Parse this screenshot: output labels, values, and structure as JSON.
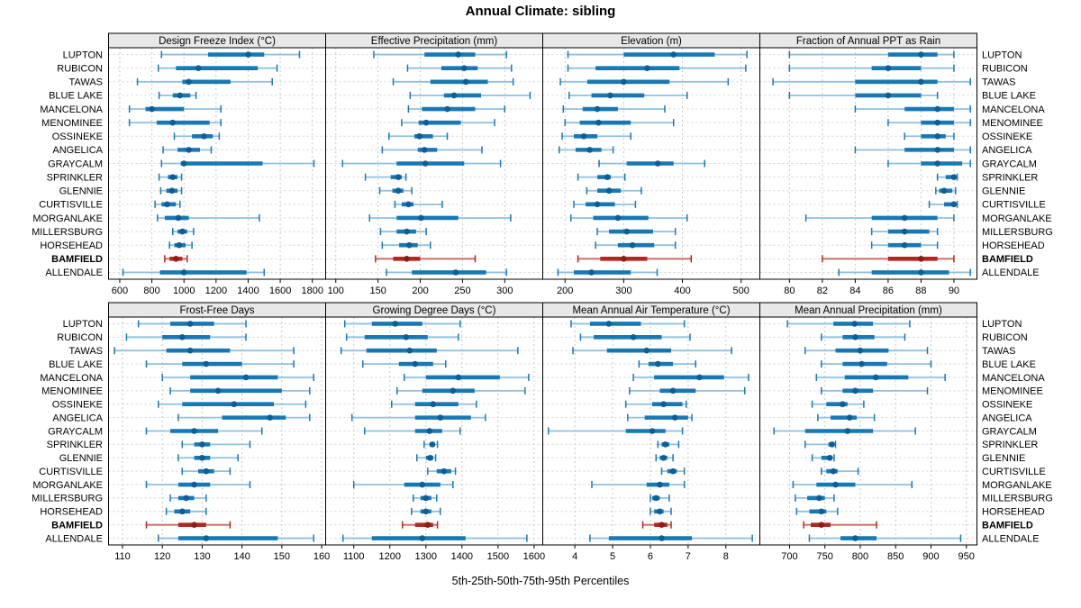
{
  "title": "Annual Climate: sibling",
  "caption": "5th-25th-50th-75th-95th Percentiles",
  "sites": [
    "LUPTON",
    "RUBICON",
    "TAWAS",
    "BLUE LAKE",
    "MANCELONA",
    "MENOMINEE",
    "OSSINEKE",
    "ANGELICA",
    "GRAYCALM",
    "SPRINKLER",
    "GLENNIE",
    "CURTISVILLE",
    "MORGANLAKE",
    "MILLERSBURG",
    "HORSEHEAD",
    "BAMFIELD",
    "ALLENDALE"
  ],
  "highlight_site": "BAMFIELD",
  "colors": {
    "normal": {
      "whisker": "#8fc1e0",
      "cap": "#1878b4",
      "box": "#1878b4",
      "dot": "#0d5e97"
    },
    "highlight": {
      "whisker": "#c96a60",
      "cap": "#b2271f",
      "box": "#b2271f",
      "dot": "#8f1d17"
    },
    "grid": "#c8c8c8",
    "row_line": "#d4d4d4",
    "strip_bg": "#e8e8e8",
    "border": "#000000",
    "text": "#000000"
  },
  "chart_data": {
    "type": "dotplot-percentiles",
    "percentiles": [
      5,
      25,
      50,
      75,
      95
    ],
    "legend_note": "5th-25th-50th-75th-95th Percentiles",
    "grid": "2 rows x 4 cols, dashed gridlines at ticks, dashed horizontal line per site row",
    "panels": [
      {
        "title": "Design Freeze Index (°C)",
        "grid_row": 0,
        "domain": [
          530,
          1883
        ],
        "ticks": [
          600,
          800,
          1000,
          1200,
          1400,
          1600,
          1800
        ],
        "values": [
          [
            860,
            1150,
            1400,
            1500,
            1720
          ],
          [
            840,
            950,
            1090,
            1460,
            1580
          ],
          [
            710,
            990,
            1030,
            1290,
            1550
          ],
          [
            845,
            930,
            975,
            1040,
            1075
          ],
          [
            660,
            760,
            800,
            1000,
            1230
          ],
          [
            660,
            830,
            930,
            1160,
            1230
          ],
          [
            940,
            1050,
            1125,
            1180,
            1220
          ],
          [
            870,
            960,
            1030,
            1100,
            1170
          ],
          [
            860,
            980,
            1000,
            1490,
            1810
          ],
          [
            845,
            900,
            930,
            960,
            985
          ],
          [
            855,
            890,
            925,
            960,
            985
          ],
          [
            820,
            860,
            895,
            950,
            975
          ],
          [
            835,
            880,
            965,
            1030,
            1470
          ],
          [
            930,
            960,
            990,
            1020,
            1060
          ],
          [
            910,
            940,
            970,
            1010,
            1050
          ],
          [
            880,
            910,
            950,
            990,
            1020
          ],
          [
            620,
            850,
            1000,
            1390,
            1500
          ]
        ]
      },
      {
        "title": "Effective Precipitation (mm)",
        "grid_row": 0,
        "domain": [
          88,
          345
        ],
        "ticks": [
          100,
          150,
          200,
          250,
          300
        ],
        "values": [
          [
            145,
            205,
            245,
            265,
            302
          ],
          [
            185,
            225,
            252,
            268,
            308
          ],
          [
            168,
            212,
            254,
            280,
            310
          ],
          [
            188,
            228,
            240,
            272,
            330
          ],
          [
            186,
            202,
            232,
            265,
            300
          ],
          [
            178,
            198,
            207,
            248,
            288
          ],
          [
            163,
            193,
            199,
            215,
            232
          ],
          [
            155,
            197,
            205,
            220,
            273
          ],
          [
            108,
            172,
            206,
            252,
            295
          ],
          [
            135,
            165,
            174,
            178,
            183
          ],
          [
            152,
            167,
            174,
            180,
            190
          ],
          [
            170,
            178,
            186,
            192,
            226
          ],
          [
            140,
            172,
            201,
            245,
            307
          ],
          [
            153,
            172,
            184,
            195,
            207
          ],
          [
            155,
            175,
            187,
            197,
            212
          ],
          [
            147,
            168,
            184,
            200,
            265
          ],
          [
            160,
            190,
            242,
            278,
            302
          ]
        ]
      },
      {
        "title": "Elevation (m)",
        "grid_row": 0,
        "domain": [
          162,
          532
        ],
        "ticks": [
          200,
          300,
          400,
          500
        ],
        "values": [
          [
            205,
            300,
            385,
            455,
            510
          ],
          [
            205,
            252,
            340,
            395,
            508
          ],
          [
            192,
            238,
            300,
            378,
            478
          ],
          [
            207,
            245,
            277,
            335,
            408
          ],
          [
            197,
            230,
            255,
            290,
            370
          ],
          [
            200,
            225,
            257,
            312,
            385
          ],
          [
            195,
            215,
            232,
            255,
            312
          ],
          [
            190,
            218,
            242,
            262,
            282
          ],
          [
            258,
            305,
            358,
            385,
            438
          ],
          [
            222,
            255,
            272,
            278,
            302
          ],
          [
            237,
            255,
            275,
            295,
            330
          ],
          [
            215,
            235,
            255,
            285,
            320
          ],
          [
            210,
            248,
            290,
            342,
            408
          ],
          [
            255,
            275,
            305,
            350,
            388
          ],
          [
            252,
            290,
            315,
            352,
            388
          ],
          [
            222,
            260,
            300,
            340,
            415
          ],
          [
            188,
            215,
            245,
            312,
            357
          ]
        ]
      },
      {
        "title": "Fraction of Annual PPT as Rain",
        "grid_row": 0,
        "domain": [
          78.2,
          91.4
        ],
        "ticks": [
          80,
          82,
          84,
          86,
          88,
          90
        ],
        "values": [
          [
            80,
            86,
            88,
            89,
            90
          ],
          [
            80,
            85,
            86,
            88,
            90
          ],
          [
            79,
            84,
            88,
            89,
            91
          ],
          [
            80,
            84,
            86,
            88,
            89
          ],
          [
            84,
            87,
            89,
            90,
            91
          ],
          [
            86,
            88,
            89,
            90,
            91
          ],
          [
            87,
            88,
            89,
            89.5,
            90
          ],
          [
            84,
            87,
            89,
            90,
            91
          ],
          [
            86,
            88,
            89,
            90.5,
            91
          ],
          [
            89,
            89.5,
            90,
            90.1,
            90.2
          ],
          [
            88.9,
            89.1,
            89.4,
            89.9,
            90.1
          ],
          [
            88.5,
            89.4,
            90,
            90.1,
            90.2
          ],
          [
            81,
            85,
            87,
            89,
            90
          ],
          [
            85,
            86,
            87,
            88.5,
            89
          ],
          [
            85,
            86,
            87,
            88,
            89
          ],
          [
            82,
            86,
            88,
            89,
            90
          ],
          [
            83,
            85,
            88,
            89.7,
            91
          ]
        ]
      },
      {
        "title": "Frost-Free Days",
        "grid_row": 1,
        "domain": [
          106.5,
          161
        ],
        "ticks": [
          110,
          120,
          130,
          140,
          150,
          160
        ],
        "values": [
          [
            114,
            122,
            127,
            133,
            141
          ],
          [
            111,
            120,
            125,
            132,
            141
          ],
          [
            108,
            121,
            127,
            137,
            153
          ],
          [
            116,
            125,
            131,
            140,
            153
          ],
          [
            120,
            127,
            141,
            149,
            158
          ],
          [
            122,
            127,
            134,
            150,
            157
          ],
          [
            119,
            125,
            138,
            148,
            156
          ],
          [
            124,
            135,
            147,
            151,
            157
          ],
          [
            116,
            122,
            128,
            134,
            145
          ],
          [
            125,
            128,
            130,
            132,
            142
          ],
          [
            124,
            128,
            130,
            132,
            139
          ],
          [
            125,
            129,
            131,
            133,
            137
          ],
          [
            116,
            124,
            128,
            132,
            142
          ],
          [
            122,
            124,
            126,
            128,
            131
          ],
          [
            121,
            123,
            125,
            127,
            131
          ],
          [
            116,
            124,
            128,
            131,
            137
          ],
          [
            119,
            124,
            131,
            149,
            158
          ]
        ]
      },
      {
        "title": "Growing Degree Days (°C)",
        "grid_row": 1,
        "domain": [
          1022,
          1624
        ],
        "ticks": [
          1100,
          1200,
          1300,
          1400,
          1500,
          1600
        ],
        "values": [
          [
            1075,
            1150,
            1215,
            1290,
            1395
          ],
          [
            1080,
            1130,
            1245,
            1305,
            1390
          ],
          [
            1065,
            1135,
            1255,
            1330,
            1555
          ],
          [
            1125,
            1225,
            1270,
            1320,
            1355
          ],
          [
            1240,
            1300,
            1390,
            1505,
            1585
          ],
          [
            1220,
            1290,
            1375,
            1435,
            1575
          ],
          [
            1205,
            1270,
            1320,
            1390,
            1440
          ],
          [
            1095,
            1270,
            1340,
            1425,
            1465
          ],
          [
            1130,
            1270,
            1310,
            1345,
            1395
          ],
          [
            1295,
            1310,
            1318,
            1325,
            1332
          ],
          [
            1275,
            1300,
            1312,
            1320,
            1327
          ],
          [
            1305,
            1330,
            1350,
            1370,
            1382
          ],
          [
            1100,
            1240,
            1290,
            1340,
            1375
          ],
          [
            1265,
            1285,
            1300,
            1315,
            1330
          ],
          [
            1260,
            1285,
            1300,
            1315,
            1340
          ],
          [
            1235,
            1270,
            1305,
            1320,
            1332
          ],
          [
            1070,
            1150,
            1290,
            1410,
            1580
          ]
        ]
      },
      {
        "title": "Mean Annual Air Temperature (°C)",
        "grid_row": 1,
        "domain": [
          3.15,
          8.9
        ],
        "ticks": [
          4,
          5,
          6,
          7,
          8
        ],
        "values": [
          [
            3.9,
            4.4,
            4.9,
            5.75,
            6.9
          ],
          [
            4.15,
            4.5,
            5.55,
            6.3,
            7.05
          ],
          [
            3.95,
            4.85,
            5.9,
            6.55,
            8.15
          ],
          [
            5.7,
            5.95,
            6.2,
            6.6,
            7.2
          ],
          [
            5.55,
            6.1,
            7.3,
            7.95,
            8.6
          ],
          [
            5.45,
            6.25,
            6.6,
            7.2,
            8.5
          ],
          [
            5.35,
            6.05,
            6.35,
            6.85,
            6.95
          ],
          [
            5.4,
            5.85,
            6.65,
            7.0,
            7.1
          ],
          [
            3.3,
            5.35,
            6.05,
            6.4,
            6.85
          ],
          [
            6.2,
            6.3,
            6.4,
            6.5,
            6.75
          ],
          [
            6.15,
            6.25,
            6.35,
            6.45,
            6.6
          ],
          [
            6.3,
            6.45,
            6.6,
            6.7,
            6.9
          ],
          [
            4.45,
            5.9,
            6.25,
            6.5,
            6.9
          ],
          [
            6.0,
            6.05,
            6.15,
            6.25,
            6.5
          ],
          [
            6.0,
            6.1,
            6.25,
            6.35,
            6.55
          ],
          [
            5.8,
            6.1,
            6.3,
            6.45,
            6.55
          ],
          [
            4.4,
            4.9,
            6.3,
            7.1,
            8.7
          ]
        ]
      },
      {
        "title": "Mean Annual Precipitation (mm)",
        "grid_row": 1,
        "domain": [
          658,
          965
        ],
        "ticks": [
          700,
          750,
          800,
          850,
          900,
          950
        ],
        "values": [
          [
            697,
            762,
            792,
            818,
            870
          ],
          [
            745,
            775,
            793,
            820,
            863
          ],
          [
            722,
            765,
            800,
            840,
            895
          ],
          [
            745,
            775,
            802,
            838,
            900
          ],
          [
            738,
            778,
            822,
            868,
            920
          ],
          [
            745,
            775,
            793,
            818,
            895
          ],
          [
            732,
            752,
            775,
            782,
            805
          ],
          [
            740,
            758,
            785,
            795,
            820
          ],
          [
            678,
            722,
            782,
            818,
            878
          ],
          [
            722,
            755,
            760,
            763,
            765
          ],
          [
            732,
            745,
            757,
            760,
            763
          ],
          [
            745,
            752,
            762,
            768,
            797
          ],
          [
            705,
            738,
            765,
            793,
            873
          ],
          [
            708,
            725,
            742,
            750,
            763
          ],
          [
            710,
            728,
            745,
            752,
            768
          ],
          [
            720,
            730,
            745,
            758,
            823
          ],
          [
            728,
            772,
            793,
            823,
            942
          ]
        ]
      }
    ]
  }
}
